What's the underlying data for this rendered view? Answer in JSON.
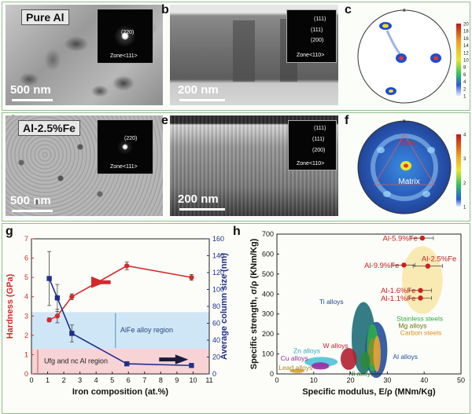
{
  "panels": {
    "a": {
      "letter": "a",
      "tag": "Pure Al",
      "scale": "500 nm",
      "inset_spot": "(220)",
      "inset_zone": "Zone<111>"
    },
    "b": {
      "letter": "b",
      "scale": "200 nm",
      "inset_spots": [
        "(111)",
        "(111)",
        "(200)"
      ],
      "inset_zone": "Zone<110>"
    },
    "c": {
      "letter": "c",
      "pole_label": "x",
      "colorbar_ticks": [
        "20",
        "18",
        "16",
        "14",
        "12",
        "10",
        "8",
        "6",
        "4",
        "2",
        "1"
      ]
    },
    "d": {
      "letter": "d",
      "tag": "Al-2.5%Fe",
      "scale": "500 nm",
      "inset_spot": "(220)",
      "inset_zone": "Zone<111>"
    },
    "e": {
      "letter": "e",
      "scale": "200 nm",
      "inset_spots": [
        "(111)",
        "(111)",
        "(200)"
      ],
      "inset_zone": "Zone<110>"
    },
    "f": {
      "letter": "f",
      "pole_label": "x",
      "twin_label": "Twin",
      "matrix_label": "Matrix",
      "colorbar_ticks": [
        "4",
        "3",
        "2",
        "1"
      ]
    },
    "g": {
      "letter": "g",
      "region_upper": "AlFe alloy region",
      "region_lower": "Ufg and nc Al region"
    },
    "h": {
      "letter": "h"
    }
  },
  "colors": {
    "hardness": "#d42a2a",
    "column": "#1f2f8a",
    "alfe_region": "#cfe6f7",
    "ufg_region": "#f7d3d6",
    "highlight_ellipse": "#f7e6a6"
  },
  "chart_data": [
    {
      "id": "g",
      "type": "line",
      "xlabel": "Iron composition (at.%)",
      "ylabel": "Hardness (GPa)",
      "y2label": "Average column size (nm)",
      "xlim": [
        0,
        11
      ],
      "ylim": [
        0,
        7
      ],
      "y2lim": [
        0,
        160
      ],
      "x_ticks": [
        0,
        1,
        2,
        3,
        4,
        5,
        6,
        7,
        8,
        9,
        10,
        11
      ],
      "y_ticks": [
        0,
        1,
        2,
        3,
        4,
        5,
        6,
        7
      ],
      "y2_ticks": [
        0,
        20,
        40,
        60,
        80,
        100,
        120,
        140,
        160
      ],
      "series": [
        {
          "axis": "left",
          "color": "#d42a2a",
          "marker": "circle",
          "x": [
            1.1,
            1.6,
            2.5,
            5.9,
            9.9
          ],
          "y": [
            2.8,
            3.0,
            4.0,
            5.6,
            5.0
          ],
          "err": [
            0.1,
            0.35,
            0.15,
            0.2,
            0.15
          ]
        },
        {
          "axis": "right",
          "color": "#1f2f8a",
          "marker": "square",
          "x": [
            1.1,
            1.6,
            2.5,
            5.9,
            9.9
          ],
          "y": [
            113,
            90,
            48,
            12,
            10
          ],
          "err": [
            32,
            16,
            10,
            2,
            2
          ]
        }
      ],
      "bands": [
        {
          "label": "AlFe alloy region",
          "y": [
            1.3,
            3.2
          ],
          "color": "#cfe6f7"
        },
        {
          "label": "Ufg and nc Al region",
          "y": [
            0,
            1.3
          ],
          "color": "#f7d3d6"
        }
      ]
    },
    {
      "id": "h",
      "type": "scatter",
      "xlabel": "Specific modulus, E/ρ (MNm/Kg)",
      "ylabel": "Specific strength, σ/ρ (KNm/Kg)",
      "xlim": [
        0,
        50
      ],
      "ylim": [
        0,
        700
      ],
      "x_ticks": [
        0,
        10,
        20,
        30,
        40,
        50
      ],
      "y_ticks": [
        0,
        100,
        200,
        300,
        400,
        500,
        600,
        700
      ],
      "points": [
        {
          "label": "Al-5.9%Fe",
          "x": 39.5,
          "y": 680,
          "xerr": 3
        },
        {
          "label": "Al-2.5%Fe",
          "x": 41,
          "y": 540,
          "xerr": 4
        },
        {
          "label": "Al-9.9%Fe",
          "x": 34.5,
          "y": 545,
          "xerr": 3
        },
        {
          "label": "Al-1.6%Fe",
          "x": 39,
          "y": 418,
          "xerr": 3
        },
        {
          "label": "Al-1.1%Fe",
          "x": 39,
          "y": 380,
          "xerr": 3
        }
      ],
      "regions": [
        {
          "label": "Ti alloys",
          "color": "#1f6e78"
        },
        {
          "label": "Stainless steels",
          "color": "#2fae48"
        },
        {
          "label": "Mg alloys",
          "color": "#8a8f2a"
        },
        {
          "label": "Carbon steels",
          "color": "#e7a23a"
        },
        {
          "label": "Al alloys",
          "color": "#234e9a"
        },
        {
          "label": "W alloys",
          "color": "#b42030"
        },
        {
          "label": "Zn alloys",
          "color": "#4cc3d9"
        },
        {
          "label": "Cu alloys",
          "color": "#9b2aa0"
        },
        {
          "label": "Ni alloys",
          "color": "#2c8a3c"
        },
        {
          "label": "Lead alloys",
          "color": "#d0a030"
        }
      ]
    }
  ]
}
